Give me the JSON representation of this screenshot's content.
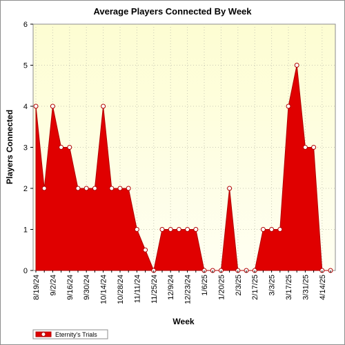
{
  "chart_data": {
    "type": "area",
    "title": "Average Players Connected By Week",
    "xlabel": "Week",
    "ylabel": "Players Connected",
    "ylim": [
      0,
      6
    ],
    "yticks": [
      0,
      1,
      2,
      3,
      4,
      5,
      6
    ],
    "x": [
      "8/19/24",
      "8/26/24",
      "9/2/24",
      "9/9/24",
      "9/16/24",
      "9/23/24",
      "9/30/24",
      "10/7/24",
      "10/14/24",
      "10/21/24",
      "10/28/24",
      "11/4/24",
      "11/11/24",
      "11/18/24",
      "11/25/24",
      "12/2/24",
      "12/9/24",
      "12/16/24",
      "12/23/24",
      "12/30/24",
      "1/6/25",
      "1/13/25",
      "1/20/25",
      "1/27/25",
      "2/3/25",
      "2/10/25",
      "2/17/25",
      "2/24/25",
      "3/3/25",
      "3/10/25",
      "3/17/25",
      "3/24/25",
      "3/31/25",
      "4/7/25",
      "4/14/25",
      "4/21/25"
    ],
    "tick_labels": [
      "8/19/24",
      "9/2/24",
      "9/16/24",
      "9/30/24",
      "10/14/24",
      "10/28/24",
      "11/11/24",
      "11/25/24",
      "12/9/24",
      "12/23/24",
      "1/6/25",
      "1/20/25",
      "2/3/25",
      "2/17/25",
      "3/3/25",
      "3/17/25",
      "3/31/25",
      "4/14/25"
    ],
    "series": [
      {
        "name": "Eternity's Trials",
        "values": [
          4,
          2,
          4,
          3,
          3,
          2,
          2,
          2,
          4,
          2,
          2,
          2,
          1,
          0.5,
          0,
          1,
          1,
          1,
          1,
          1,
          0,
          0,
          0,
          2,
          0,
          0,
          0,
          1,
          1,
          1,
          4,
          5,
          3,
          3,
          0,
          0
        ]
      }
    ],
    "grid": true,
    "legend": "bottom-left",
    "colors": {
      "fill": "#e00000",
      "stroke": "#b00000",
      "plot_bg_top": "#fefed8",
      "plot_bg_bottom": "#ffffee"
    }
  }
}
